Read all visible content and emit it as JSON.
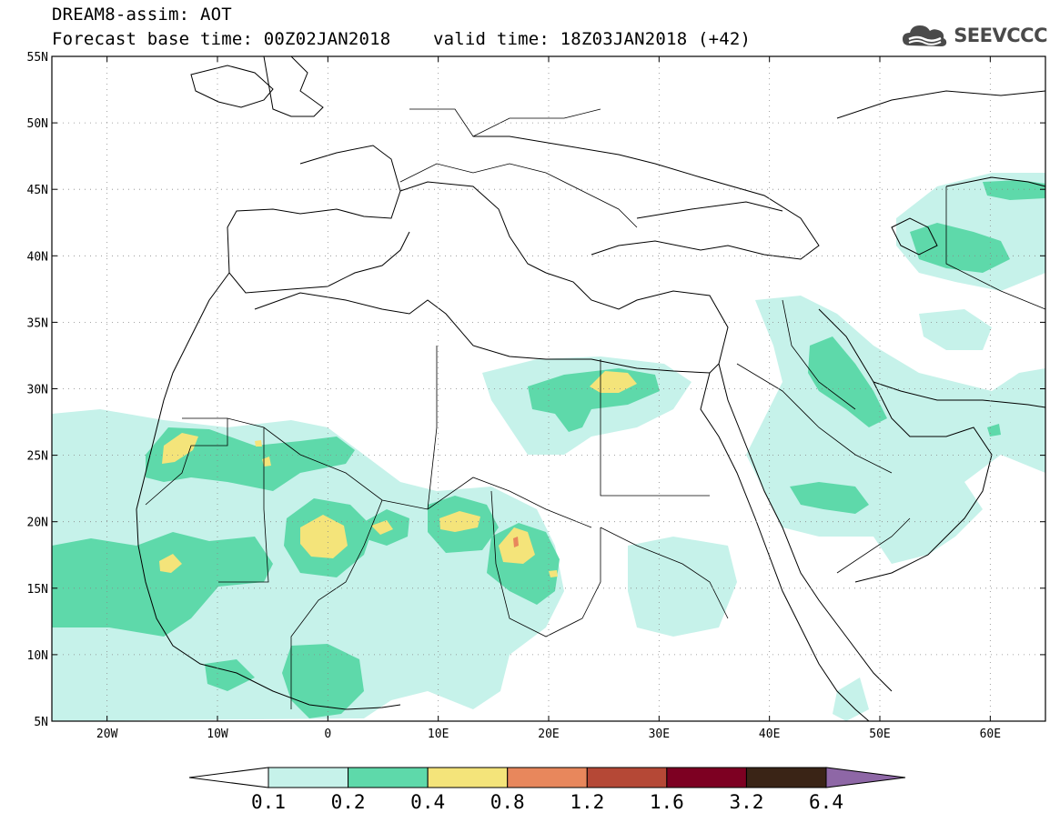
{
  "header": {
    "line1": "DREAM8-assim: AOT",
    "line2": "Forecast base time: 00Z02JAN2018    valid time: 18Z03JAN2018 (+42)"
  },
  "logo": {
    "text": "SEEVCCC",
    "icon": "cloud-icon"
  },
  "map": {
    "projection": "lat-lon",
    "lon_range": [
      -25,
      65
    ],
    "lat_range": [
      5,
      55
    ],
    "lat_ticks": [
      {
        "v": 55,
        "label": "55N"
      },
      {
        "v": 50,
        "label": "50N"
      },
      {
        "v": 45,
        "label": "45N"
      },
      {
        "v": 40,
        "label": "40N"
      },
      {
        "v": 35,
        "label": "35N"
      },
      {
        "v": 30,
        "label": "30N"
      },
      {
        "v": 25,
        "label": "25N"
      },
      {
        "v": 20,
        "label": "20N"
      },
      {
        "v": 15,
        "label": "15N"
      },
      {
        "v": 10,
        "label": "10N"
      },
      {
        "v": 5,
        "label": "5N"
      }
    ],
    "lon_ticks": [
      {
        "v": -20,
        "label": "20W"
      },
      {
        "v": -10,
        "label": "10W"
      },
      {
        "v": 0,
        "label": "0"
      },
      {
        "v": 10,
        "label": "10E"
      },
      {
        "v": 20,
        "label": "20E"
      },
      {
        "v": 30,
        "label": "30E"
      },
      {
        "v": 40,
        "label": "40E"
      },
      {
        "v": 50,
        "label": "50E"
      },
      {
        "v": 60,
        "label": "60E"
      }
    ],
    "grid": "dotted"
  },
  "colorbar": {
    "levels": [
      "0.1",
      "0.2",
      "0.4",
      "0.8",
      "1.2",
      "1.6",
      "3.2",
      "6.4"
    ],
    "colors": [
      "#ffffff",
      "#c6f2ea",
      "#5ed9aa",
      "#f4e47a",
      "#e8875c",
      "#b54836",
      "#7d0022",
      "#3a2416",
      "#8e67a6"
    ]
  }
}
